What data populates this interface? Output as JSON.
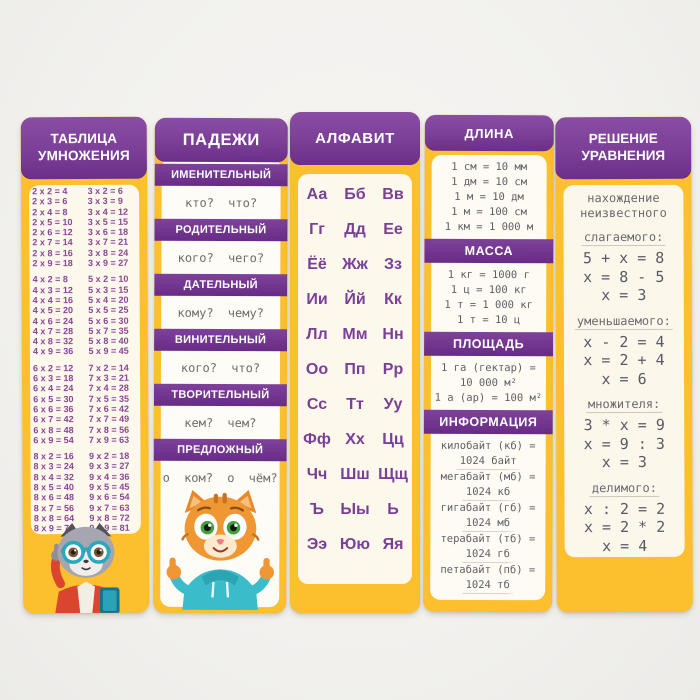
{
  "colors": {
    "background": "#f2f1ee",
    "card_yellow": "#fcbf2e",
    "header_purple": "#7b3f97",
    "bar_purple": "#692c86",
    "panel_cream": "#fcf8ec",
    "text_purple": "#8b4596",
    "text_gray": "#5f5e63"
  },
  "multiplication": {
    "title": "ТАБЛИЦА УМНОЖЕНИЯ",
    "character_icon": "raccoon-with-glasses-and-book",
    "groups": [
      {
        "left": [
          "2 x 2 = 4",
          "2 x 3 = 6",
          "2 x 4 = 8",
          "2 x 5 = 10",
          "2 x 6 = 12",
          "2 x 7 = 14",
          "2 x 8 = 16",
          "2 x 9 = 18"
        ],
        "right": [
          "3 x 2 = 6",
          "3 x 3 = 9",
          "3 x 4 = 12",
          "3 x 5 = 15",
          "3 x 6 = 18",
          "3 x 7 = 21",
          "3 x 8 = 24",
          "3 x 9 = 27"
        ]
      },
      {
        "left": [
          "4 x 2 = 8",
          "4 x 3 = 12",
          "4 x 4 = 16",
          "4 x 5 = 20",
          "4 x 6 = 24",
          "4 x 7 = 28",
          "4 x 8 = 32",
          "4 x 9 = 36"
        ],
        "right": [
          "5 x 2 = 10",
          "5 x 3 = 15",
          "5 x 4 = 20",
          "5 x 5 = 25",
          "5 x 6 = 30",
          "5 x 7 = 35",
          "5 x 8 = 40",
          "5 x 9 = 45"
        ]
      },
      {
        "left": [
          "6 x 2 = 12",
          "6 x 3 = 18",
          "6 x 4 = 24",
          "6 x 5 = 30",
          "6 x 6 = 36",
          "6 x 7 = 42",
          "6 x 8 = 48",
          "6 x 9 = 54"
        ],
        "right": [
          "7 x 2 = 14",
          "7 x 3 = 21",
          "7 x 4 = 28",
          "7 x 5 = 35",
          "7 x 6 = 42",
          "7 x 7 = 49",
          "7 x 8 = 56",
          "7 x 9 = 63"
        ]
      },
      {
        "left": [
          "8 x 2 = 16",
          "8 x 3 = 24",
          "8 x 4 = 32",
          "8 x 5 = 40",
          "8 x 6 = 48",
          "8 x 7 = 56",
          "8 x 8 = 64",
          "8 x 9 = 72"
        ],
        "right": [
          "9 x 2 = 18",
          "9 x 3 = 27",
          "9 x 4 = 36",
          "9 x 5 = 45",
          "9 x 6 = 54",
          "9 x 7 = 63",
          "9 x 8 = 72",
          "9 x 9 = 81"
        ]
      }
    ]
  },
  "cases": {
    "title": "ПАДЕЖИ",
    "character_icon": "cat-in-hoodie-thumbs-up",
    "sections": [
      {
        "name": "ИМЕНИТЕЛЬНЫЙ",
        "questions": "кто? что?"
      },
      {
        "name": "РОДИТЕЛЬНЫЙ",
        "questions": "кого? чего?"
      },
      {
        "name": "ДАТЕЛЬНЫЙ",
        "questions": "кому? чему?"
      },
      {
        "name": "ВИНИТЕЛЬНЫЙ",
        "questions": "кого? что?"
      },
      {
        "name": "ТВОРИТЕЛЬНЫЙ",
        "questions": "кем? чем?"
      },
      {
        "name": "ПРЕДЛОЖНЫЙ",
        "questions": "о ком? о чём?"
      }
    ]
  },
  "alphabet": {
    "title": "АЛФАВИТ",
    "letters": [
      "Аа",
      "Бб",
      "Вв",
      "Гг",
      "Дд",
      "Ее",
      "Ёё",
      "Жж",
      "Зз",
      "Ии",
      "Йй",
      "Кк",
      "Лл",
      "Мм",
      "Нн",
      "Оо",
      "Пп",
      "Рр",
      "Сс",
      "Тт",
      "Уу",
      "Фф",
      "Хх",
      "Цц",
      "Чч",
      "Шш",
      "Щщ",
      "Ъ",
      "Ыы",
      "Ь",
      "Ээ",
      "Юю",
      "Яя"
    ]
  },
  "units": {
    "sections": [
      {
        "name": "ДЛИНА",
        "lines": [
          "1 см = 10 мм",
          "1 дм = 10 см",
          "1 м = 10 дм",
          "1 м = 100 см",
          "1 км = 1 000 м"
        ]
      },
      {
        "name": "МАССА",
        "lines": [
          "1 кг = 1000 г",
          "1 ц = 100 кг",
          "1 т = 1 000 кг",
          "1 т = 10 ц"
        ]
      },
      {
        "name": "ПЛОЩАДЬ",
        "lines": [
          "1 га (гектар) =",
          "10 000 м²",
          "1 а (ар) = 100 м²"
        ]
      },
      {
        "name": "ИНФОРМАЦИЯ",
        "lines": [
          "килобайт (кб) =",
          "1024 байт",
          "мегабайт (мб) =",
          "1024 кб",
          "гигабайт (гб) =",
          "1024 мб",
          "терабайт (тб) =",
          "1024 гб",
          "петабайт (пб) =",
          "1024 тб"
        ]
      }
    ]
  },
  "equations": {
    "title": "РЕШЕНИЕ УРАВНЕНИЯ",
    "intro": "нахождение неизвестного",
    "sections": [
      {
        "label": "слагаемого:",
        "steps": [
          "5 + x = 8",
          "x = 8 - 5",
          "x = 3"
        ]
      },
      {
        "label": "уменьшаемого:",
        "steps": [
          "x - 2 = 4",
          "x = 2 + 4",
          "x = 6"
        ]
      },
      {
        "label": "множителя:",
        "steps": [
          "3 * x = 9",
          "x = 9 : 3",
          "x = 3"
        ]
      },
      {
        "label": "делимого:",
        "steps": [
          "x : 2 = 2",
          "x = 2 * 2",
          "x = 4"
        ]
      }
    ]
  }
}
